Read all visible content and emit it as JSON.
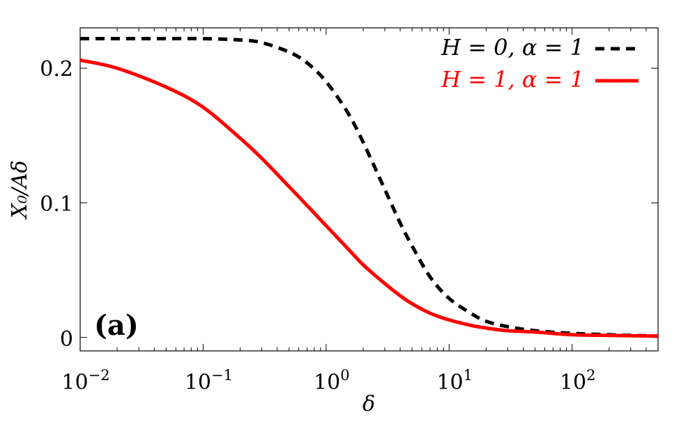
{
  "chart_data": {
    "type": "line",
    "xscale": "log",
    "xlim": [
      0.01,
      500
    ],
    "ylim": [
      -0.01,
      0.23
    ],
    "xlabel": "δ",
    "ylabel": "X₀/Aδ",
    "panel_label": "(a)",
    "grid": false,
    "legend_position": "top-right",
    "x_ticks": [
      {
        "value": 0.01,
        "base": "10",
        "exp": "−2"
      },
      {
        "value": 0.1,
        "base": "10",
        "exp": "−1"
      },
      {
        "value": 1,
        "base": "10",
        "exp": "0"
      },
      {
        "value": 10,
        "base": "10",
        "exp": "1"
      },
      {
        "value": 100,
        "base": "10",
        "exp": "2"
      }
    ],
    "y_ticks": [
      {
        "value": 0,
        "label": "0"
      },
      {
        "value": 0.1,
        "label": "0.1"
      },
      {
        "value": 0.2,
        "label": "0.2"
      }
    ],
    "series": [
      {
        "name": "H = 0, α = 1",
        "color": "#000000",
        "dash": true,
        "x": [
          0.01,
          0.02,
          0.05,
          0.1,
          0.2,
          0.3,
          0.5,
          0.7,
          1,
          1.5,
          2,
          3,
          4,
          5,
          7,
          10,
          15,
          20,
          30,
          50,
          100,
          200,
          500
        ],
        "y": [
          0.222,
          0.222,
          0.222,
          0.222,
          0.221,
          0.219,
          0.212,
          0.204,
          0.19,
          0.167,
          0.145,
          0.11,
          0.085,
          0.068,
          0.045,
          0.029,
          0.018,
          0.012,
          0.008,
          0.005,
          0.003,
          0.002,
          0.001
        ]
      },
      {
        "name": "H = 1, α = 1",
        "color": "#ff0000",
        "dash": false,
        "x": [
          0.01,
          0.02,
          0.05,
          0.1,
          0.2,
          0.3,
          0.5,
          0.7,
          1,
          1.5,
          2,
          3,
          4,
          5,
          7,
          10,
          15,
          20,
          30,
          50,
          100,
          200,
          500
        ],
        "y": [
          0.206,
          0.2,
          0.186,
          0.171,
          0.148,
          0.133,
          0.112,
          0.098,
          0.083,
          0.066,
          0.054,
          0.04,
          0.031,
          0.025,
          0.018,
          0.013,
          0.009,
          0.007,
          0.005,
          0.004,
          0.002,
          0.0015,
          0.001
        ]
      }
    ]
  }
}
